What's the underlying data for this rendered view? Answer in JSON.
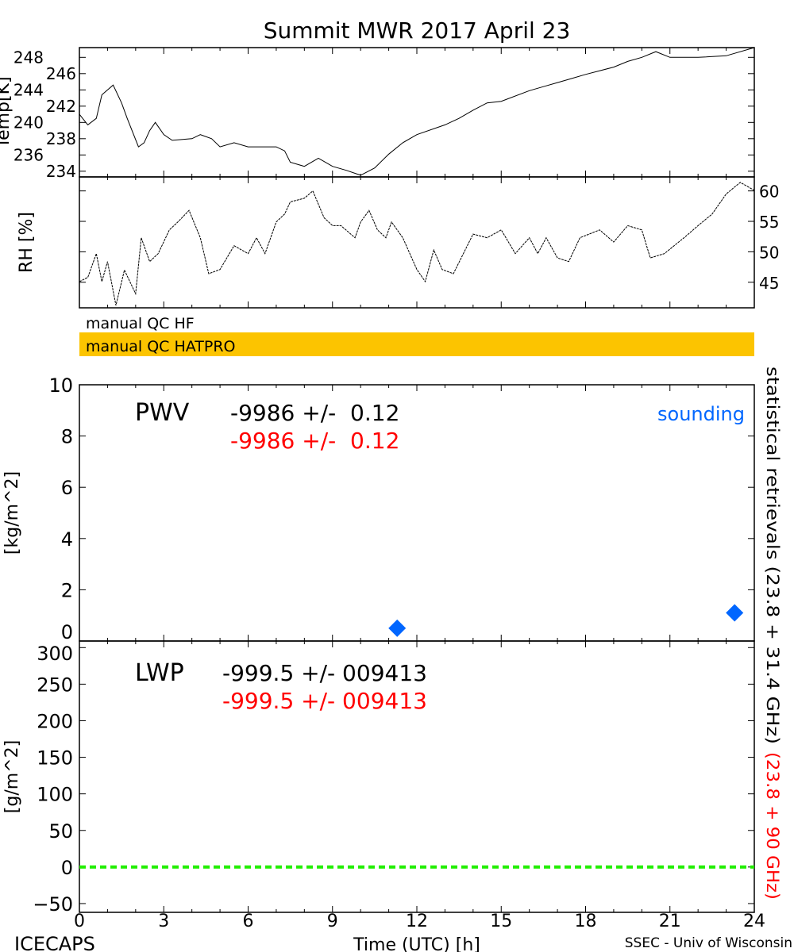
{
  "title": "Summit MWR 2017 April 23",
  "colors": {
    "qc_bar": "#fcc400",
    "red": "#ff0000",
    "blue": "#0066ff",
    "green": "#22ee00",
    "black": "#000000"
  },
  "footer": {
    "left": "ICECAPS",
    "center": "Time (UTC) [h]",
    "right": "SSEC - Univ of Wisconsin"
  },
  "qc": {
    "hf": "manual QC HF",
    "hatpro": "manual QC HATPRO"
  },
  "right_labels": {
    "black": "statistical retrievals (23.8 + 31.4 GHz)",
    "red": "(23.8 + 90 GHz)"
  },
  "chart_data": [
    {
      "id": "temp",
      "type": "line",
      "ylabel": "Temp[K]",
      "ylim": [
        233.3,
        249.2
      ],
      "xlim": [
        0,
        24
      ],
      "yticks": [
        "234",
        "236",
        "238",
        "240",
        "242",
        "244",
        "246",
        "248"
      ],
      "x": [
        0,
        0.3,
        0.6,
        0.8,
        1.2,
        1.5,
        1.7,
        2.1,
        2.3,
        2.5,
        2.7,
        3.0,
        3.3,
        4,
        4.3,
        4.7,
        5,
        5.5,
        6,
        6.5,
        7,
        7.3,
        7.5,
        8,
        8.5,
        9,
        9.5,
        10,
        10.5,
        11,
        11.5,
        12,
        13,
        13.5,
        14,
        14.5,
        15,
        16,
        16.5,
        17,
        17.5,
        18,
        19,
        19.5,
        20,
        20.5,
        21,
        22,
        23,
        24
      ],
      "y": [
        241,
        239.7,
        240.5,
        243.4,
        244.6,
        242.4,
        240.5,
        237,
        237.5,
        239,
        240,
        238.5,
        237.8,
        238,
        238.5,
        238,
        237,
        237.5,
        237,
        237,
        237,
        236.5,
        235.1,
        234.6,
        235.6,
        234.6,
        234.1,
        233.5,
        234.4,
        236.1,
        237.5,
        238.5,
        239.7,
        240.5,
        241.5,
        242.4,
        242.6,
        243.9,
        244.4,
        244.9,
        245.4,
        245.9,
        246.8,
        247.5,
        248,
        248.7,
        248,
        248,
        248.2,
        249.2
      ]
    },
    {
      "id": "rh",
      "type": "line",
      "ylabel": "RH [%]",
      "ylim": [
        40.8,
        62.3
      ],
      "xlim": [
        0,
        24
      ],
      "yticks": [
        "45",
        "50",
        "55",
        "60"
      ],
      "x": [
        0,
        0.3,
        0.6,
        0.8,
        1.0,
        1.3,
        1.6,
        2.0,
        2.2,
        2.5,
        2.8,
        3.2,
        3.5,
        3.9,
        4.3,
        4.6,
        5,
        5.5,
        6,
        6.3,
        6.6,
        7,
        7.3,
        7.5,
        8,
        8.3,
        8.7,
        9,
        9.3,
        9.8,
        10,
        10.3,
        10.6,
        10.9,
        11.1,
        11.5,
        12,
        12.3,
        12.6,
        12.9,
        13.3,
        14,
        14.5,
        15,
        15.5,
        16,
        16.3,
        16.6,
        17,
        17.4,
        17.8,
        18.5,
        19,
        19.5,
        20,
        20.3,
        20.8,
        21.5,
        22,
        22.5,
        23,
        23.5,
        24
      ],
      "y": [
        45.1,
        45.8,
        49.7,
        45.1,
        48.4,
        41.2,
        47,
        43.1,
        52.3,
        48.4,
        49.7,
        53.6,
        54.9,
        56.8,
        52.3,
        46.4,
        47.1,
        51,
        49.7,
        52.3,
        49.7,
        54.9,
        56.2,
        58.2,
        58.8,
        60,
        55.6,
        54.3,
        54.3,
        52.3,
        54.9,
        56.8,
        53.6,
        52.3,
        54.9,
        52.3,
        47.1,
        45.1,
        50.3,
        47.1,
        46.4,
        52.9,
        52.3,
        53.6,
        49.7,
        52.3,
        49.7,
        52.3,
        49,
        48.4,
        52.3,
        53.6,
        51.6,
        54.3,
        53.6,
        49,
        49.7,
        52.3,
        54.3,
        56.2,
        59.5,
        61.4,
        60.1
      ]
    },
    {
      "id": "pwv",
      "type": "scatter",
      "ylabel": "[kg/m^2]",
      "ylim": [
        0,
        10
      ],
      "xlim": [
        0,
        24
      ],
      "yticks": [
        "0",
        "2",
        "4",
        "6",
        "8",
        "10"
      ],
      "label": "PWV",
      "stat_black": "-9986 +/-  0.12",
      "stat_red": "-9986 +/-  0.12",
      "legend": "sounding",
      "points": [
        {
          "x": 11.3,
          "y": 0.5
        },
        {
          "x": 23.3,
          "y": 1.1
        }
      ]
    },
    {
      "id": "lwp",
      "type": "line",
      "ylabel": "[g/m^2]",
      "ylim": [
        -62,
        309
      ],
      "xlim": [
        0,
        24
      ],
      "yticks": [
        "-50",
        "0",
        "50",
        "100",
        "150",
        "200",
        "250",
        "300"
      ],
      "label": "LWP",
      "stat_black": "-999.5 +/- 009413",
      "stat_red": "-999.5 +/- 009413",
      "zero_line": 0,
      "xticks": [
        "0",
        "3",
        "6",
        "9",
        "12",
        "15",
        "18",
        "21",
        "24"
      ]
    }
  ]
}
